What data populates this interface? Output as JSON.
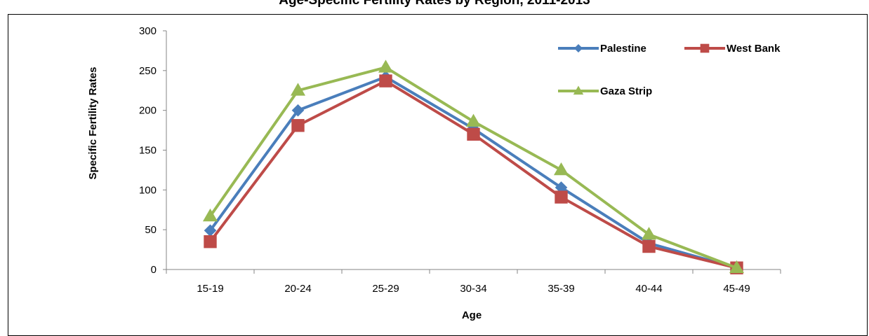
{
  "chart_data": {
    "type": "line",
    "title": "Age-Specific Fertility Rates by Region, 2011-2013",
    "xlabel": "Age",
    "ylabel": "Specific Fertility Rates",
    "categories": [
      "15-19",
      "20-24",
      "25-29",
      "30-34",
      "35-39",
      "40-44",
      "45-49"
    ],
    "ylim": [
      0,
      300
    ],
    "yticks": [
      0,
      50,
      100,
      150,
      200,
      250,
      300
    ],
    "grid": false,
    "legend_position": "top-right",
    "series": [
      {
        "name": "Palestine",
        "color": "#4a7ebb",
        "marker": "diamond",
        "values": [
          49,
          200,
          242,
          177,
          103,
          33,
          2
        ]
      },
      {
        "name": "West Bank",
        "color": "#be4b48",
        "marker": "square",
        "values": [
          35,
          181,
          237,
          170,
          91,
          29,
          2
        ]
      },
      {
        "name": "Gaza Strip",
        "color": "#98b954",
        "marker": "triangle",
        "values": [
          67,
          225,
          254,
          186,
          125,
          44,
          2
        ]
      }
    ]
  }
}
